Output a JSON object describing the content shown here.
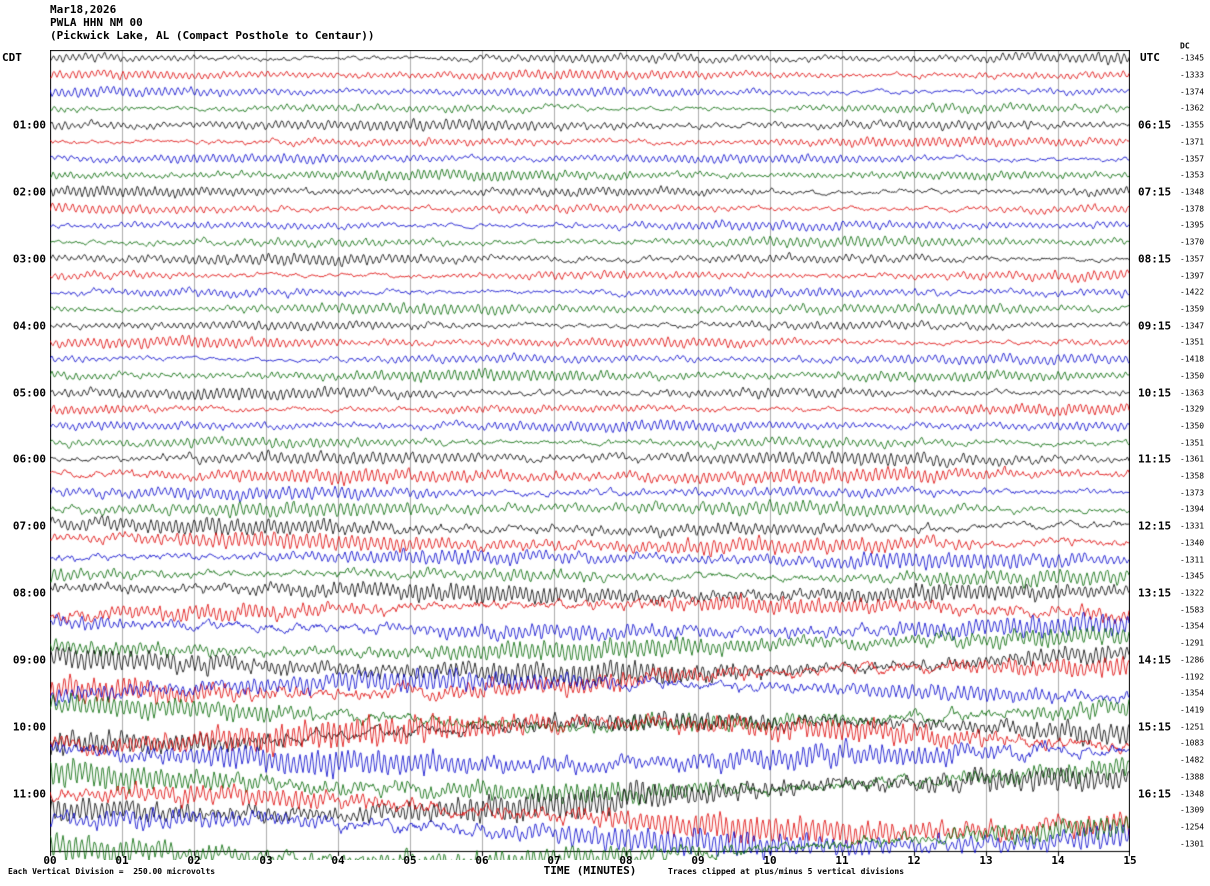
{
  "header": {
    "date": "Mar18,2026",
    "station": "PWLA HHN NM 00",
    "location": "(Pickwick Lake, AL (Compact Posthole to Centaur))"
  },
  "left_axis": {
    "label": "CDT",
    "hours": [
      "01:00",
      "02:00",
      "03:00",
      "04:00",
      "05:00",
      "06:00",
      "07:00",
      "08:00",
      "09:00",
      "10:00",
      "11:00"
    ]
  },
  "right_axis": {
    "label": "UTC",
    "dc_header": "DC",
    "hours": [
      "06:15",
      "07:15",
      "08:15",
      "09:15",
      "10:15",
      "11:15",
      "12:15",
      "13:15",
      "14:15",
      "15:15",
      "16:15"
    ]
  },
  "footer": {
    "xlabel": "TIME (MINUTES)",
    "scale_note": "Each Vertical Division =  250.00 microvolts",
    "clip_note": "Traces clipped at plus/minus 5 vertical divisions"
  },
  "chart_data": {
    "type": "line",
    "title": "PWLA HHN NM 00 (Pickwick Lake, AL) helicorder",
    "xlabel": "TIME (MINUTES)",
    "x_range": [
      0,
      15
    ],
    "x_tick_labels": [
      "00",
      "01",
      "02",
      "03",
      "04",
      "05",
      "06",
      "07",
      "08",
      "09",
      "10",
      "11",
      "12",
      "13",
      "14",
      "15"
    ],
    "minutes_per_row": 15,
    "row_count": 48,
    "units_per_division": "250.00 microvolts",
    "clip_divisions": 5,
    "row_cycle_colors": [
      "#000000",
      "#dd0000",
      "#0000cc",
      "#006600"
    ],
    "grid_color": "#ababab",
    "row_dc_offsets": [
      -1345,
      -1333,
      -1374,
      -1362,
      -1355,
      -1371,
      -1357,
      -1353,
      -1348,
      -1378,
      -1395,
      -1370,
      -1357,
      -1397,
      -1422,
      -1359,
      -1347,
      -1351,
      -1418,
      -1350,
      -1363,
      -1329,
      -1350,
      -1351,
      -1361,
      -1358,
      -1373,
      -1394,
      -1331,
      -1340,
      -1311,
      -1345,
      -1322,
      -1583,
      -1354,
      -1291,
      -1286,
      -1192,
      -1354,
      -1419,
      -1251,
      -1083,
      -1482,
      -1388,
      -1348,
      -1309,
      -1254,
      -1301
    ],
    "row_amplitudes": [
      0.85,
      0.75,
      0.75,
      0.8,
      0.9,
      0.8,
      0.75,
      0.8,
      0.85,
      0.8,
      0.8,
      0.85,
      0.9,
      0.8,
      0.85,
      0.85,
      0.9,
      0.85,
      0.8,
      0.9,
      1.0,
      0.9,
      0.85,
      0.95,
      1.1,
      1.2,
      1.1,
      1.15,
      1.3,
      1.35,
      1.25,
      1.3,
      1.5,
      1.7,
      1.6,
      1.55,
      1.9,
      2.0,
      1.8,
      1.9,
      2.1,
      2.2,
      2.0,
      2.1,
      2.2,
      2.3,
      2.1,
      2.2
    ]
  }
}
